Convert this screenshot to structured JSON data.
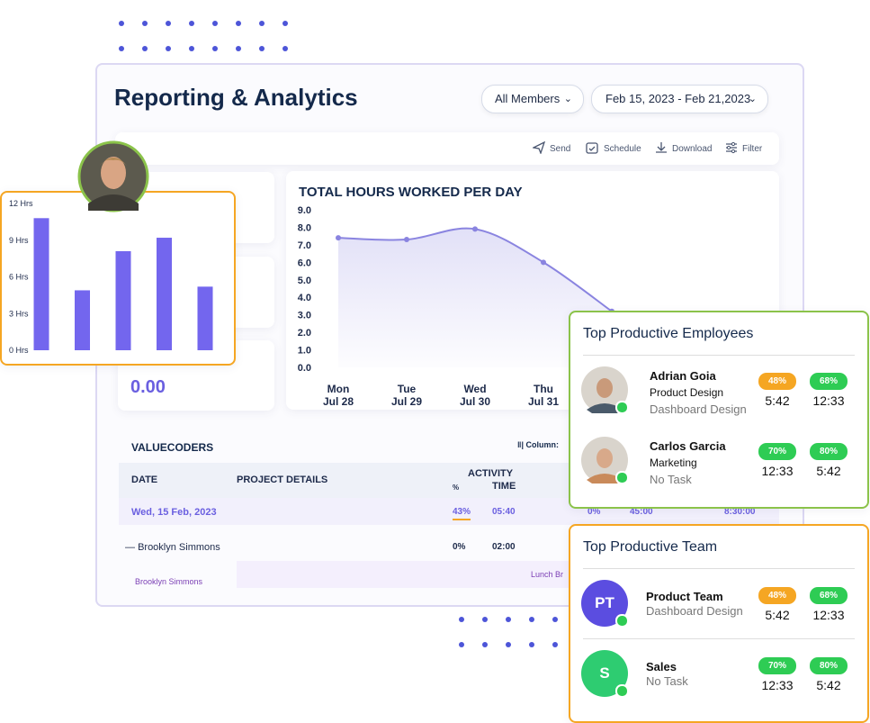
{
  "header": {
    "title": "Reporting & Analytics",
    "members_filter": "All Members",
    "date_range": "Feb 15, 2023 - Feb 21,2023"
  },
  "toolbar": [
    "Send",
    "Schedule",
    "Download",
    "Filter"
  ],
  "stat_value": "0.00",
  "line_chart": {
    "type": "line",
    "title": "TOTAL HOURS WORKED PER DAY",
    "categories": [
      "Mon",
      "Tue",
      "Wed",
      "Thu",
      null
    ],
    "dates": [
      "Jul 28",
      "Jul 29",
      "Jul 30",
      "Jul 31",
      null
    ],
    "values": [
      7.4,
      7.3,
      7.9,
      6.0,
      3.2
    ],
    "color": "#8a84e0",
    "ylim": [
      0,
      9
    ],
    "yticks": [
      {
        "value": 0,
        "label": "0.0"
      },
      {
        "value": 1,
        "label": "1.0"
      },
      {
        "value": 2,
        "label": "2.0"
      },
      {
        "value": 3,
        "label": "3.0"
      },
      {
        "value": 4,
        "label": "4.0"
      },
      {
        "value": 5,
        "label": "5.0"
      },
      {
        "value": 6,
        "label": "6.0"
      },
      {
        "value": 7,
        "label": "7.0"
      },
      {
        "value": 8,
        "label": "8.0"
      },
      {
        "value": 9,
        "label": "9.0"
      }
    ]
  },
  "bar_chart": {
    "type": "bar",
    "values": [
      10.8,
      4.9,
      8.1,
      9.2,
      5.2
    ],
    "color": "#7366ee",
    "ylim": [
      0,
      12
    ],
    "yticks": [
      {
        "value": 0,
        "label": "0 Hrs"
      },
      {
        "value": 3,
        "label": "3 Hrs"
      },
      {
        "value": 6,
        "label": "6 Hrs"
      },
      {
        "value": 9,
        "label": "9 Hrs"
      },
      {
        "value": 12,
        "label": "12 Hrs"
      }
    ]
  },
  "table": {
    "title": "VALUECODERS",
    "column_button": "Column:",
    "headers": {
      "date": "DATE",
      "project": "PROJECT DETAILS",
      "activity": "ACTIVITY",
      "percent": "%",
      "time": "TIME"
    },
    "rows": [
      [
        "Wed, 15 Feb, 2023",
        "43%",
        "05:40",
        "0%",
        "45:00",
        "8:30:00"
      ],
      [
        "Brooklyn Simmons",
        "0%",
        "02:00"
      ]
    ],
    "timeline": {
      "member": "Brooklyn Simmons",
      "entry": "Lunch Br"
    }
  },
  "employees": {
    "title": "Top Productive Employees",
    "items": [
      {
        "name": "Adrian Goia",
        "department": "Product Design",
        "task": "Dashboard Design",
        "badge1": "48%",
        "value1": "5:42",
        "badge2": "68%",
        "value2": "12:33"
      },
      {
        "name": "Carlos Garcia",
        "department": "Marketing",
        "task": "No Task",
        "badge1": "70%",
        "value1": "12:33",
        "badge2": "80%",
        "value2": "5:42"
      }
    ]
  },
  "teams": {
    "title": "Top Productive Team",
    "items": [
      {
        "initials": "PT",
        "name": "Product Team",
        "task": "Dashboard Design",
        "badge1": "48%",
        "value1": "5:42",
        "badge2": "68%",
        "value2": "12:33"
      },
      {
        "initials": "S",
        "name": "Sales",
        "task": "No Task",
        "badge1": "70%",
        "value1": "12:33",
        "badge2": "80%",
        "value2": "5:42"
      }
    ]
  }
}
